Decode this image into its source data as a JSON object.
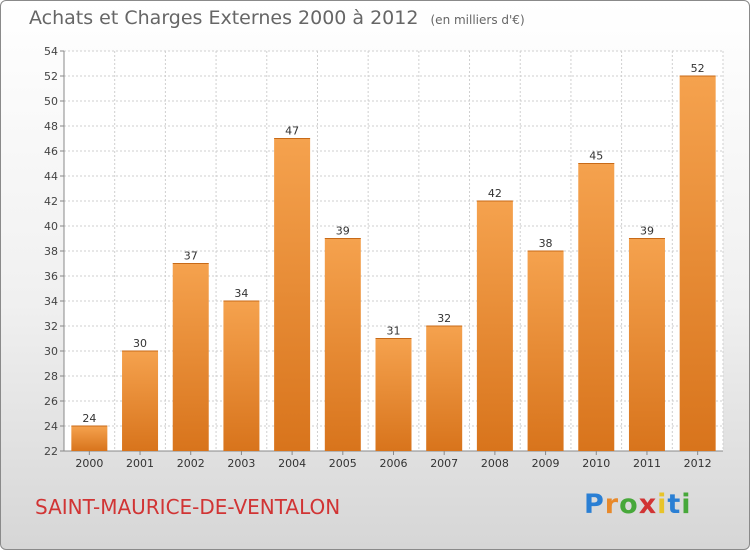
{
  "header": {
    "title": "Achats et Charges Externes 2000 à 2012",
    "unit": "(en milliers d'€)"
  },
  "footer": {
    "commune": "SAINT-MAURICE-DE-VENTALON",
    "logo": "Proxiti"
  },
  "colors": {
    "bar_top": "#f5a24e",
    "bar_bottom": "#d8741c",
    "commune_text": "#d13434",
    "logo_letters": [
      "#2a7fd4",
      "#e8892a",
      "#47a83a",
      "#d13434",
      "#e8c42a",
      "#2a7fd4",
      "#47a83a"
    ]
  },
  "chart_data": {
    "type": "bar",
    "title": "Achats et Charges Externes 2000 à 2012",
    "ylabel": "",
    "xlabel": "",
    "categories": [
      "2000",
      "2001",
      "2002",
      "2003",
      "2004",
      "2005",
      "2006",
      "2007",
      "2008",
      "2009",
      "2010",
      "2011",
      "2012"
    ],
    "values": [
      24,
      30,
      37,
      34,
      47,
      39,
      31,
      32,
      42,
      38,
      45,
      39,
      52
    ],
    "ylim": [
      22,
      54
    ],
    "yticks": [
      22,
      24,
      26,
      28,
      30,
      32,
      34,
      36,
      38,
      40,
      42,
      44,
      46,
      48,
      50,
      52,
      54
    ],
    "grid": true,
    "data_labels": true
  }
}
